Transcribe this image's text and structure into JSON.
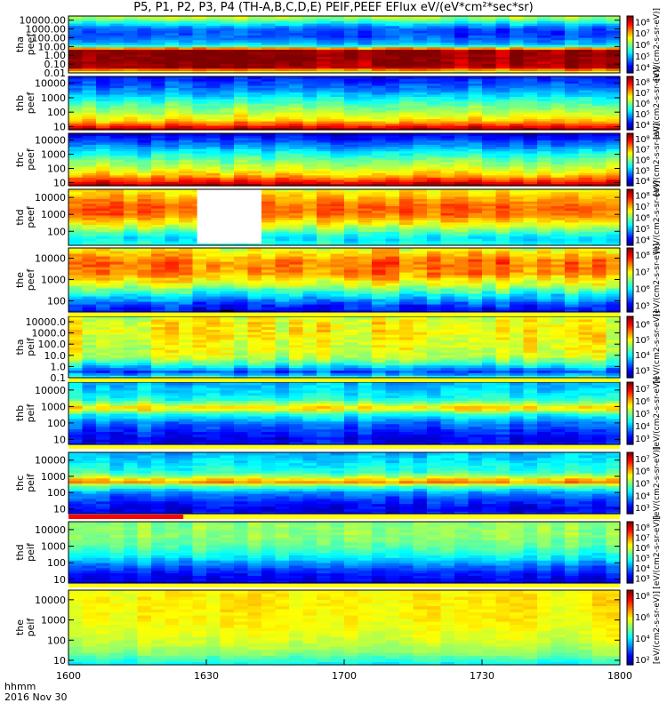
{
  "title": "P5, P1, P2, P3, P4 (TH-A,B,C,D,E) PEIF,PEEF EFlux eV/(eV*cm²*sec*sr)",
  "footer": {
    "time_format": "hhmm",
    "date": "2016 Nov 30"
  },
  "x_axis": {
    "tick_labels": [
      "1600",
      "1630",
      "1700",
      "1730",
      "1800"
    ],
    "range": [
      "16:00",
      "18:00"
    ]
  },
  "colorbar_unit_label": "[eV/(cm2-s-sr-eV)]",
  "chart_data": [
    {
      "type": "heatmap",
      "panel": "tha peef",
      "ylabel": [
        "tha",
        "peef"
      ],
      "y_scale": "log",
      "ylim": [
        0.01,
        30000
      ],
      "y_ticks": [
        "10000.00",
        "1000.00",
        "100.00",
        "10.00",
        "1.00",
        "0.10",
        "0.01"
      ],
      "colorbar_ticks": [
        "10^8",
        "10^7",
        "10^6",
        "10^5",
        "10^4"
      ],
      "colorbar_range_log": [
        3.5,
        8.5
      ],
      "profile": [
        [
          0.01,
          6.0
        ],
        [
          0.05,
          8.3
        ],
        [
          1.0,
          8.4
        ],
        [
          5.0,
          8.4
        ],
        [
          8.0,
          6.5
        ],
        [
          12,
          5.6
        ],
        [
          25,
          5.0
        ],
        [
          60,
          4.7
        ],
        [
          150,
          4.5
        ],
        [
          400,
          4.4
        ],
        [
          1500,
          4.6
        ],
        [
          5000,
          5.3
        ],
        [
          15000,
          6.0
        ],
        [
          30000,
          6.4
        ]
      ],
      "gaps": []
    },
    {
      "type": "heatmap",
      "panel": "thb peef",
      "ylabel": [
        "thb",
        "peef"
      ],
      "y_scale": "log",
      "ylim": [
        6,
        30000
      ],
      "y_ticks": [
        "10000",
        "1000",
        "100",
        "10"
      ],
      "colorbar_ticks": [
        "10^8",
        "10^7",
        "10^6",
        "10^5",
        "10^4"
      ],
      "colorbar_range_log": [
        3.5,
        8.5
      ],
      "profile": [
        [
          6,
          8.4
        ],
        [
          9,
          8.1
        ],
        [
          15,
          7.5
        ],
        [
          30,
          6.8
        ],
        [
          100,
          6.3
        ],
        [
          400,
          5.8
        ],
        [
          1500,
          5.2
        ],
        [
          5000,
          4.7
        ],
        [
          15000,
          4.4
        ],
        [
          30000,
          4.2
        ]
      ],
      "gaps": []
    },
    {
      "type": "heatmap",
      "panel": "thc peef",
      "ylabel": [
        "thc",
        "peef"
      ],
      "y_scale": "log",
      "ylim": [
        6,
        30000
      ],
      "y_ticks": [
        "10000",
        "1000",
        "100",
        "10"
      ],
      "colorbar_ticks": [
        "10^8",
        "10^7",
        "10^6",
        "10^5",
        "10^4"
      ],
      "colorbar_range_log": [
        3.5,
        8.5
      ],
      "profile": [
        [
          6,
          8.4
        ],
        [
          9,
          8.1
        ],
        [
          15,
          7.6
        ],
        [
          30,
          7.0
        ],
        [
          100,
          6.4
        ],
        [
          400,
          5.9
        ],
        [
          1500,
          5.3
        ],
        [
          5000,
          4.7
        ],
        [
          15000,
          4.2
        ],
        [
          30000,
          3.9
        ]
      ],
      "gaps": []
    },
    {
      "type": "heatmap",
      "panel": "thd peef",
      "ylabel": [
        "thd",
        "peef"
      ],
      "y_scale": "log",
      "ylim": [
        15,
        30000
      ],
      "y_ticks": [
        "10000",
        "1000",
        "100"
      ],
      "colorbar_ticks": [
        "10^8",
        "10^7",
        "10^6",
        "10^5",
        "10^4"
      ],
      "colorbar_range_log": [
        3.5,
        8.5
      ],
      "profile": [
        [
          15,
          5.6
        ],
        [
          40,
          5.2
        ],
        [
          100,
          5.8
        ],
        [
          300,
          6.6
        ],
        [
          1000,
          7.3
        ],
        [
          3000,
          7.4
        ],
        [
          10000,
          7.0
        ],
        [
          30000,
          6.6
        ]
      ],
      "gaps": [
        [
          "16:28",
          "16:42"
        ]
      ]
    },
    {
      "type": "heatmap",
      "panel": "the peef",
      "ylabel": [
        "the",
        "peef"
      ],
      "y_scale": "log",
      "ylim": [
        30,
        30000
      ],
      "y_ticks": [
        "10000",
        "1000",
        "100"
      ],
      "colorbar_ticks": [
        "10^8",
        "10^7",
        "10^6",
        "10^5"
      ],
      "colorbar_range_log": [
        4.6,
        8.4
      ],
      "profile": [
        [
          30,
          5.0
        ],
        [
          70,
          5.3
        ],
        [
          200,
          6.0
        ],
        [
          600,
          6.8
        ],
        [
          2000,
          7.4
        ],
        [
          6000,
          7.5
        ],
        [
          15000,
          7.2
        ],
        [
          30000,
          6.9
        ]
      ],
      "gaps": []
    },
    {
      "type": "heatmap",
      "panel": "tha peif",
      "ylabel": [
        "tha",
        "peif"
      ],
      "y_scale": "log",
      "ylim": [
        0.1,
        30000
      ],
      "y_ticks": [
        "10000.0",
        "1000.0",
        "100.0",
        "10.0",
        "1.0",
        "0.1"
      ],
      "colorbar_ticks": [
        "10^6",
        "10^5",
        "10^4",
        "10^3"
      ],
      "colorbar_range_log": [
        2.5,
        6.5
      ],
      "profile": [
        [
          0.1,
          4.5
        ],
        [
          0.3,
          3.2
        ],
        [
          1.0,
          3.8
        ],
        [
          3.0,
          4.4
        ],
        [
          10,
          4.8
        ],
        [
          100,
          4.9
        ],
        [
          1000,
          5.0
        ],
        [
          10000,
          5.0
        ],
        [
          30000,
          4.8
        ]
      ],
      "gaps": []
    },
    {
      "type": "heatmap",
      "panel": "thb peif",
      "ylabel": [
        "thb",
        "peif"
      ],
      "y_scale": "log",
      "ylim": [
        5,
        30000
      ],
      "y_ticks": [
        "10000",
        "1000",
        "100",
        "10"
      ],
      "colorbar_ticks": [
        "10^7",
        "10^6",
        "10^5",
        "10^4",
        "10^3"
      ],
      "colorbar_range_log": [
        2.5,
        7.5
      ],
      "profile": [
        [
          5,
          3.3
        ],
        [
          10,
          3.0
        ],
        [
          30,
          3.3
        ],
        [
          100,
          3.7
        ],
        [
          400,
          4.6
        ],
        [
          800,
          6.0
        ],
        [
          1200,
          5.5
        ],
        [
          3000,
          4.5
        ],
        [
          10000,
          4.2
        ],
        [
          30000,
          4.0
        ]
      ],
      "gaps": []
    },
    {
      "type": "heatmap",
      "panel": "thc peif",
      "ylabel": [
        "thc",
        "peif"
      ],
      "y_scale": "log",
      "ylim": [
        5,
        30000
      ],
      "y_ticks": [
        "10000",
        "1000",
        "100",
        "10"
      ],
      "colorbar_ticks": [
        "10^7",
        "10^6",
        "10^5",
        "10^4",
        "10^3"
      ],
      "colorbar_range_log": [
        2.5,
        7.5
      ],
      "profile": [
        [
          5,
          3.2
        ],
        [
          10,
          3.0
        ],
        [
          30,
          3.3
        ],
        [
          100,
          3.8
        ],
        [
          300,
          5.0
        ],
        [
          500,
          6.3
        ],
        [
          800,
          5.5
        ],
        [
          2000,
          4.6
        ],
        [
          10000,
          4.2
        ],
        [
          30000,
          4.0
        ]
      ],
      "gaps": []
    },
    {
      "type": "heatmap",
      "panel": "thd peif",
      "ylabel": [
        "thd",
        "peif"
      ],
      "y_scale": "log",
      "ylim": [
        6,
        30000
      ],
      "y_ticks": [
        "10000",
        "1000",
        "100",
        "10"
      ],
      "colorbar_ticks": [
        "10^8",
        "10^7",
        "10^6",
        "10^5",
        "10^4",
        "10^3"
      ],
      "colorbar_range_log": [
        2.5,
        8.5
      ],
      "profile": [
        [
          6,
          3.0
        ],
        [
          20,
          3.3
        ],
        [
          60,
          3.8
        ],
        [
          200,
          4.6
        ],
        [
          1000,
          5.3
        ],
        [
          5000,
          5.6
        ],
        [
          15000,
          5.6
        ],
        [
          30000,
          5.5
        ]
      ],
      "gaps": []
    },
    {
      "type": "heatmap",
      "panel": "the peif",
      "ylabel": [
        "the",
        "peif"
      ],
      "y_scale": "log",
      "ylim": [
        6,
        30000
      ],
      "y_ticks": [
        "10000",
        "1000",
        "100",
        "10"
      ],
      "colorbar_ticks": [
        "10^8",
        "10^6",
        "10^4",
        "10^2"
      ],
      "colorbar_range_log": [
        1.5,
        8.5
      ],
      "profile": [
        [
          6,
          4.0
        ],
        [
          20,
          5.0
        ],
        [
          100,
          5.6
        ],
        [
          1000,
          5.9
        ],
        [
          10000,
          6.0
        ],
        [
          30000,
          5.9
        ]
      ],
      "gaps": []
    }
  ],
  "status_bars": [
    {
      "after_panel": "the peef",
      "color": "#ffff00"
    },
    {
      "after_panel": "tha peif",
      "color": "#ffff00"
    },
    {
      "after_panel": "thb peif",
      "color": "#ffff00"
    },
    {
      "after_panel": "thc peif",
      "color": "#ffff00",
      "red_segment": [
        "16:00",
        "16:25"
      ]
    },
    {
      "after_panel": "thd peif",
      "color": "#ffff00"
    }
  ]
}
